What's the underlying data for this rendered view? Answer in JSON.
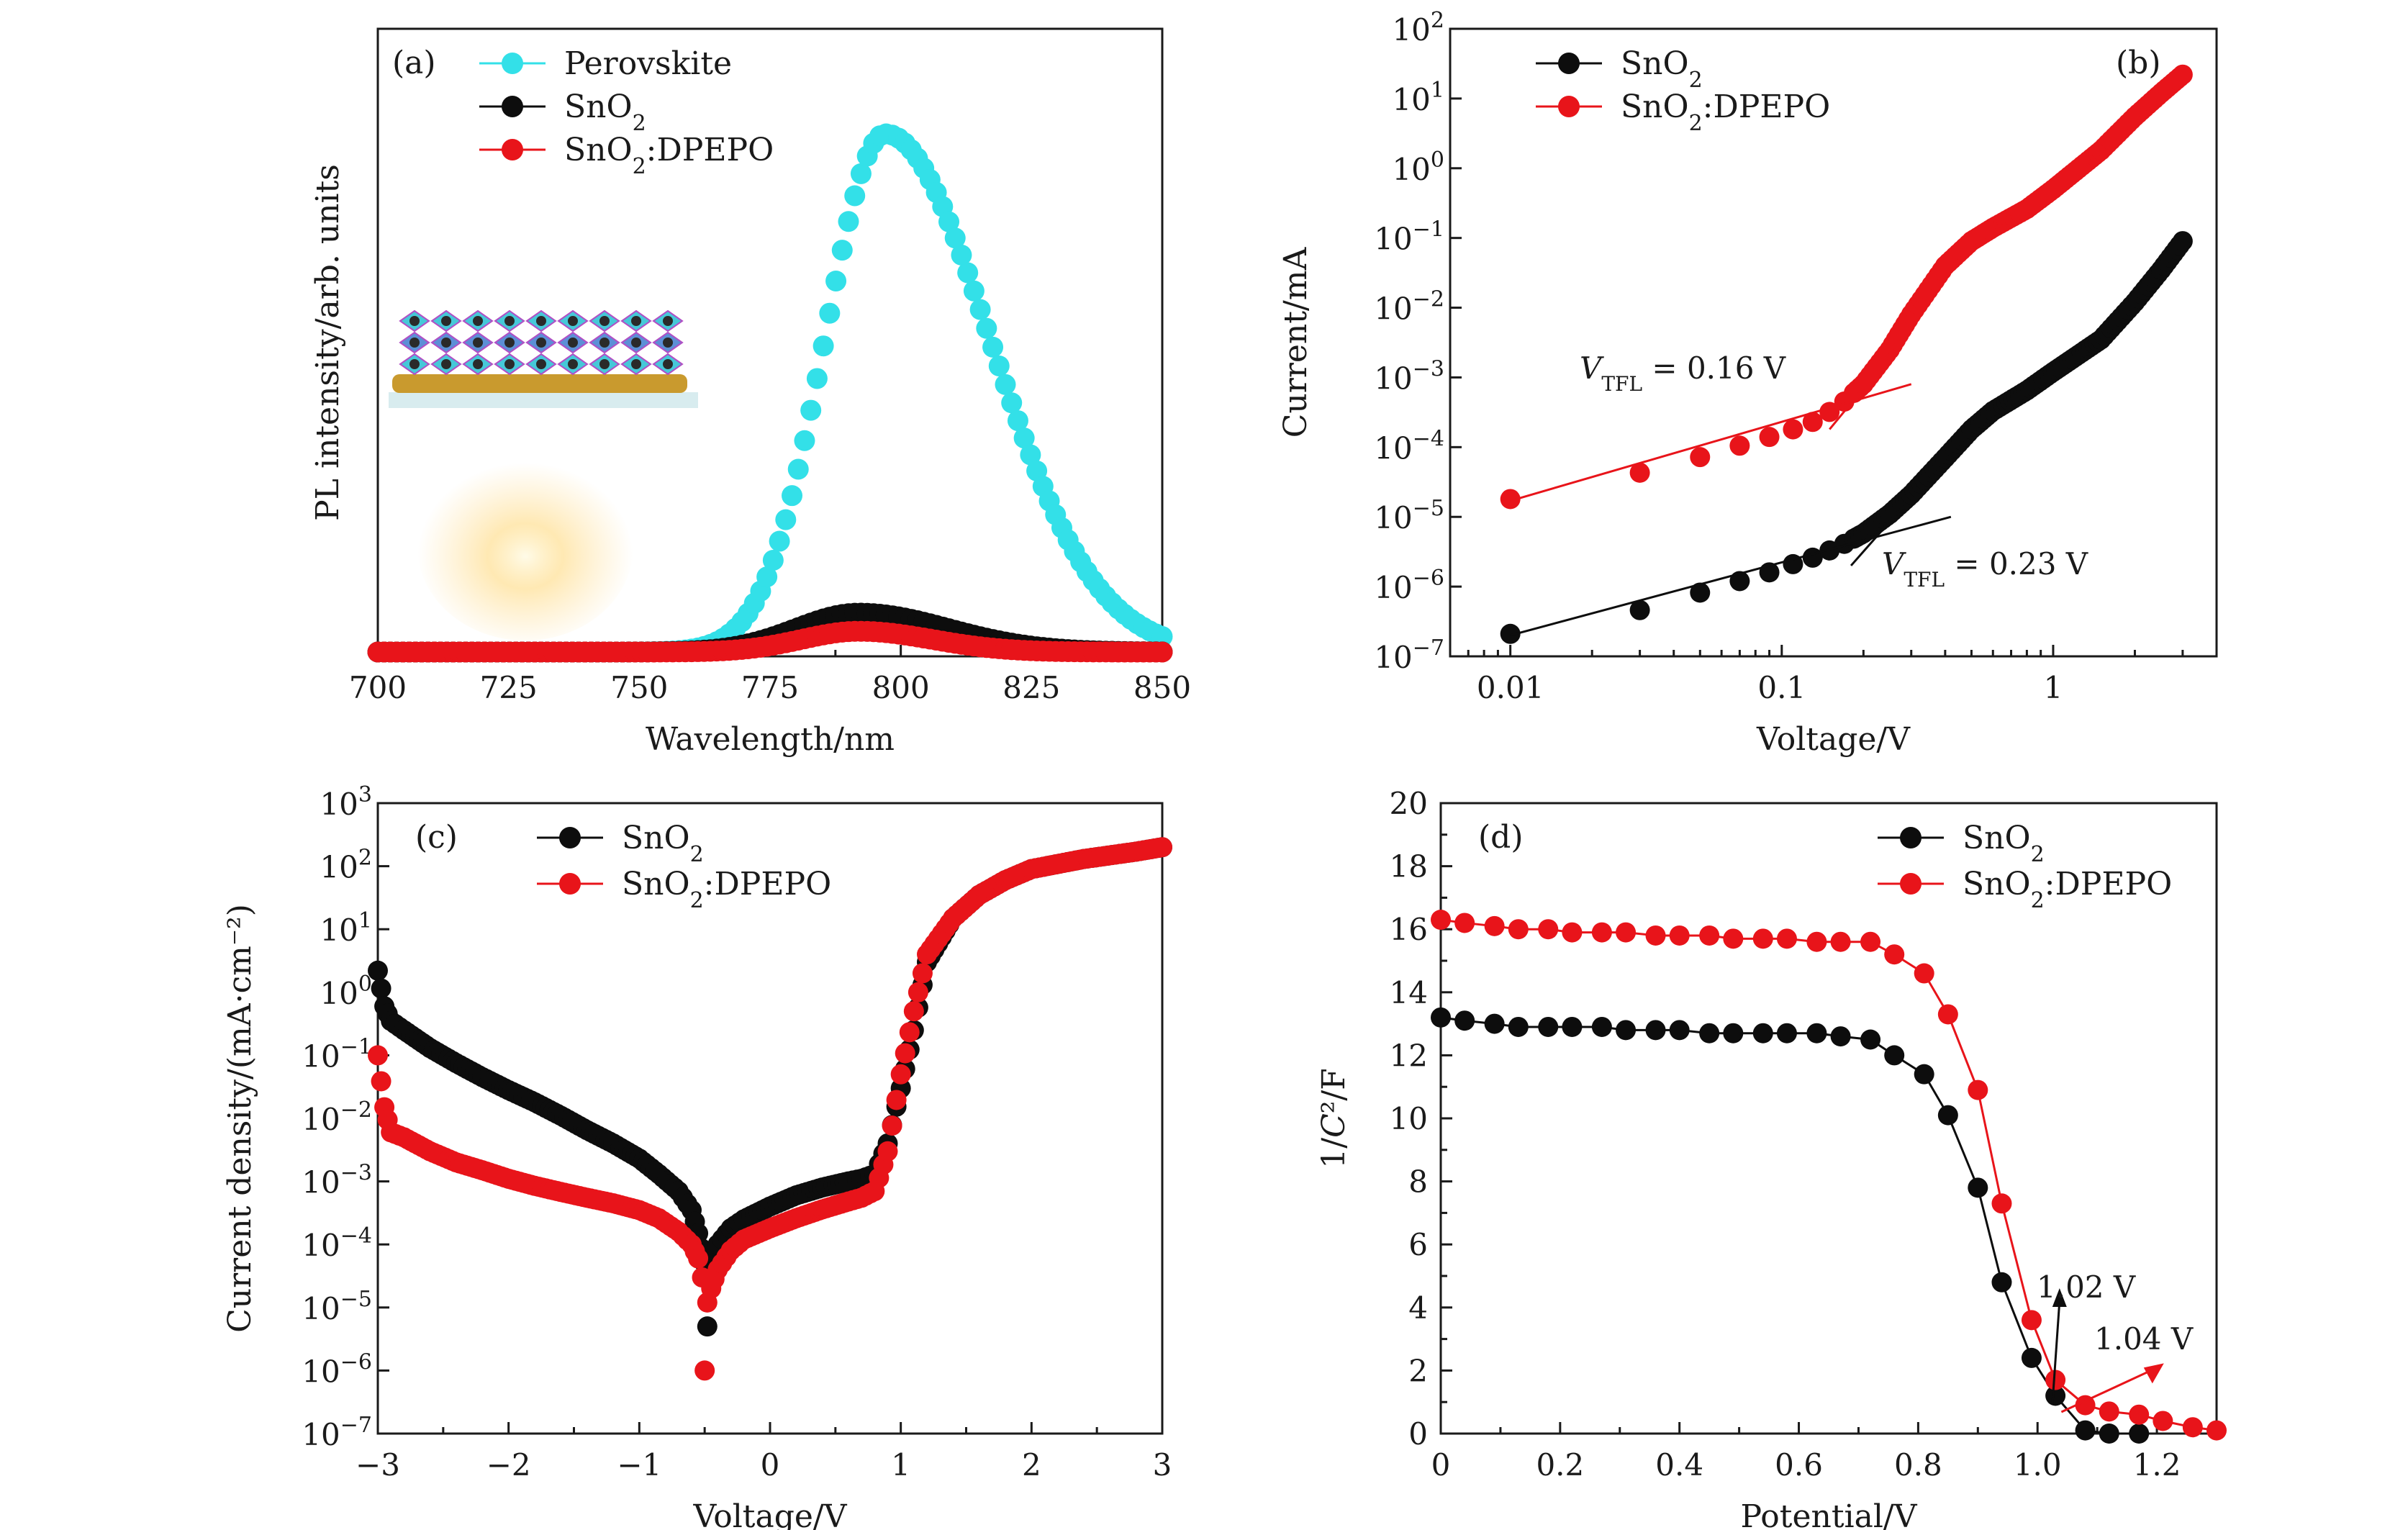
{
  "colors": {
    "perovskite": "#33e0e8",
    "sno2": "#0d0d0d",
    "dpepo": "#e8141a"
  },
  "chart_data": [
    {
      "id": "a",
      "type": "scatter",
      "panel_label": "(a)",
      "xlabel": "Wavelength/nm",
      "ylabel": "PL intensity/arb. units",
      "xlim": [
        700,
        850
      ],
      "ylim": [
        0,
        1
      ],
      "xticks": [
        "700",
        "725",
        "750",
        "775",
        "800",
        "825",
        "850"
      ],
      "yticks_shown": false,
      "legend": [
        "Perovskite",
        "SnO2",
        "SnO2:DPEPO"
      ],
      "series": [
        {
          "name": "Perovskite",
          "model": "gaussian",
          "peak_x": 797,
          "peak_y": 1.0,
          "sigma_left": 11.5,
          "sigma_right": 20.0,
          "x_range": [
            700,
            850
          ]
        },
        {
          "name": "SnO2",
          "model": "gaussian",
          "peak_x": 792,
          "peak_y": 0.075,
          "sigma_left": 12,
          "sigma_right": 17,
          "x_range": [
            700,
            850
          ]
        },
        {
          "name": "SnO2:DPEPO",
          "model": "gaussian",
          "peak_x": 792,
          "peak_y": 0.04,
          "sigma_left": 11,
          "sigma_right": 14,
          "x_range": [
            700,
            850
          ]
        }
      ],
      "inset": "perovskite film on SnO2 layer with emitted light"
    },
    {
      "id": "b",
      "type": "scatter",
      "panel_label": "(b)",
      "xlabel": "Voltage/V",
      "ylabel": "Current/mA",
      "xscale": "log",
      "yscale": "log",
      "xlim": [
        0.006,
        4
      ],
      "ylim": [
        1e-07,
        100
      ],
      "xticks": [
        {
          "v": 0.01,
          "label": "0.01"
        },
        {
          "v": 0.1,
          "label": "0.1"
        },
        {
          "v": 1,
          "label": "1"
        }
      ],
      "yticks_exp": [
        -7,
        -6,
        -5,
        -4,
        -3,
        -2,
        -1,
        0,
        1,
        2
      ],
      "legend": [
        "SnO2",
        "SnO2:DPEPO"
      ],
      "series": [
        {
          "name": "SnO2",
          "x": [
            0.01,
            0.03,
            0.05,
            0.07,
            0.09,
            0.11,
            0.13,
            0.15,
            0.17,
            0.2,
            0.25,
            0.3,
            0.4,
            0.5,
            0.6,
            0.8,
            1.0,
            1.5,
            2.0,
            2.5,
            3.0
          ],
          "y": [
            2.1e-07,
            4.6e-07,
            8.2e-07,
            1.2e-06,
            1.6e-06,
            2.1e-06,
            2.6e-06,
            3.3e-06,
            4.1e-06,
            5.8e-06,
            1.1e-05,
            2.1e-05,
            7e-05,
            0.00018,
            0.00033,
            0.00065,
            0.0012,
            0.0035,
            0.012,
            0.035,
            0.09
          ]
        },
        {
          "name": "SnO2:DPEPO",
          "x": [
            0.01,
            0.03,
            0.05,
            0.07,
            0.09,
            0.11,
            0.13,
            0.15,
            0.17,
            0.2,
            0.25,
            0.3,
            0.4,
            0.5,
            0.6,
            0.8,
            1.0,
            1.5,
            2.0,
            2.5,
            3.0
          ],
          "y": [
            1.8e-05,
            4.3e-05,
            7.2e-05,
            0.000105,
            0.00014,
            0.00018,
            0.00023,
            0.00032,
            0.00045,
            0.0008,
            0.0025,
            0.008,
            0.04,
            0.09,
            0.14,
            0.26,
            0.5,
            1.8,
            5.5,
            12,
            22
          ]
        }
      ],
      "fit_lines": [
        {
          "series": "SnO2",
          "from": [
            0.01,
            2e-07
          ],
          "to": [
            0.42,
            1e-05
          ]
        },
        {
          "series": "SnO2",
          "from": [
            0.18,
            2e-06
          ],
          "to": [
            0.27,
            1.2e-05
          ]
        },
        {
          "series": "SnO2:DPEPO",
          "from": [
            0.01,
            1.7e-05
          ],
          "to": [
            0.3,
            0.0008
          ]
        },
        {
          "series": "SnO2:DPEPO",
          "from": [
            0.15,
            0.00018
          ],
          "to": [
            0.22,
            0.0011
          ]
        }
      ],
      "annotations": [
        {
          "pre": "V",
          "sub": "TFL",
          "post": " = 0.16 V"
        },
        {
          "pre": "V",
          "sub": "TFL",
          "post": " = 0.23 V"
        }
      ]
    },
    {
      "id": "c",
      "type": "scatter",
      "panel_label": "(c)",
      "xlabel": "Voltage/V",
      "ylabel": "Current density/(mA·cm⁻²)",
      "yscale": "log",
      "xlim": [
        -3,
        3
      ],
      "ylim": [
        1e-07,
        1000
      ],
      "xticks": [
        {
          "v": -3,
          "label": "−3"
        },
        {
          "v": -2,
          "label": "−2"
        },
        {
          "v": -1,
          "label": "−1"
        },
        {
          "v": 0,
          "label": "0"
        },
        {
          "v": 1,
          "label": "1"
        },
        {
          "v": 2,
          "label": "2"
        },
        {
          "v": 3,
          "label": "3"
        }
      ],
      "yticks_exp": [
        -7,
        -6,
        -5,
        -4,
        -3,
        -2,
        -1,
        0,
        1,
        2,
        3
      ],
      "legend": [
        "SnO2",
        "SnO2:DPEPO"
      ],
      "series": [
        {
          "name": "SnO2",
          "x": [
            -3.0,
            -2.95,
            -2.9,
            -2.8,
            -2.6,
            -2.4,
            -2.2,
            -2.0,
            -1.8,
            -1.6,
            -1.4,
            -1.2,
            -1.0,
            -0.85,
            -0.7,
            -0.6,
            -0.55,
            -0.5,
            -0.48,
            -0.45,
            -0.4,
            -0.3,
            -0.2,
            0.0,
            0.2,
            0.4,
            0.6,
            0.7,
            0.8,
            0.9,
            1.0,
            1.1,
            1.2,
            1.4,
            1.6,
            1.8,
            2.0,
            2.4,
            2.8,
            3.0
          ],
          "y": [
            2.2,
            0.6,
            0.35,
            0.25,
            0.13,
            0.075,
            0.045,
            0.028,
            0.018,
            0.011,
            0.0065,
            0.004,
            0.0023,
            0.0013,
            0.0007,
            0.00035,
            0.00015,
            5e-05,
            5e-06,
            4e-05,
            0.0001,
            0.00018,
            0.00025,
            0.0004,
            0.0006,
            0.0008,
            0.001,
            0.0011,
            0.0013,
            0.004,
            0.03,
            0.25,
            3.0,
            15,
            35,
            60,
            90,
            130,
            170,
            200
          ]
        },
        {
          "name": "SnO2:DPEPO",
          "x": [
            -3.0,
            -2.95,
            -2.9,
            -2.8,
            -2.6,
            -2.4,
            -2.2,
            -2.0,
            -1.8,
            -1.6,
            -1.4,
            -1.2,
            -1.0,
            -0.85,
            -0.7,
            -0.6,
            -0.55,
            -0.52,
            -0.5,
            -0.48,
            -0.45,
            -0.4,
            -0.3,
            -0.2,
            0.0,
            0.2,
            0.4,
            0.6,
            0.7,
            0.8,
            0.9,
            1.0,
            1.1,
            1.2,
            1.4,
            1.6,
            1.8,
            2.0,
            2.4,
            2.8,
            3.0
          ],
          "y": [
            0.1,
            0.015,
            0.006,
            0.005,
            0.003,
            0.002,
            0.0015,
            0.0011,
            0.00085,
            0.00068,
            0.00055,
            0.00045,
            0.00035,
            0.00026,
            0.00016,
            0.0001,
            6e-05,
            3e-05,
            1e-06,
            1.2e-05,
            2e-05,
            4e-05,
            8e-05,
            0.00012,
            0.00018,
            0.00026,
            0.00036,
            0.00048,
            0.00055,
            0.0007,
            0.003,
            0.05,
            0.5,
            4.0,
            15,
            35,
            60,
            90,
            130,
            170,
            200
          ]
        }
      ]
    },
    {
      "id": "d",
      "type": "line",
      "panel_label": "(d)",
      "xlabel": "Potential/V",
      "ylabel": "1/C²/F",
      "xlim": [
        0,
        1.3
      ],
      "ylim": [
        0,
        20
      ],
      "xticks": [
        "0",
        "0.2",
        "0.4",
        "0.6",
        "0.8",
        "1.0",
        "1.2"
      ],
      "yticks": [
        "0",
        "2",
        "4",
        "6",
        "8",
        "10",
        "12",
        "14",
        "16",
        "18",
        "20"
      ],
      "legend": [
        "SnO2",
        "SnO2:DPEPO"
      ],
      "series": [
        {
          "name": "SnO2",
          "x": [
            0.0,
            0.04,
            0.09,
            0.13,
            0.18,
            0.22,
            0.27,
            0.31,
            0.36,
            0.4,
            0.45,
            0.49,
            0.54,
            0.58,
            0.63,
            0.67,
            0.72,
            0.76,
            0.81,
            0.85,
            0.9,
            0.94,
            0.99,
            1.03,
            1.08,
            1.12,
            1.17
          ],
          "y": [
            13.2,
            13.1,
            13.0,
            12.9,
            12.9,
            12.9,
            12.9,
            12.8,
            12.8,
            12.8,
            12.7,
            12.7,
            12.7,
            12.7,
            12.7,
            12.6,
            12.5,
            12.0,
            11.4,
            10.1,
            7.8,
            4.8,
            2.4,
            1.2,
            0.1,
            0.0,
            0.0
          ]
        },
        {
          "name": "SnO2:DPEPO",
          "x": [
            0.0,
            0.04,
            0.09,
            0.13,
            0.18,
            0.22,
            0.27,
            0.31,
            0.36,
            0.4,
            0.45,
            0.49,
            0.54,
            0.58,
            0.63,
            0.67,
            0.72,
            0.76,
            0.81,
            0.85,
            0.9,
            0.94,
            0.99,
            1.03,
            1.08,
            1.12,
            1.17,
            1.21,
            1.26,
            1.3
          ],
          "y": [
            16.3,
            16.2,
            16.1,
            16.0,
            16.0,
            15.9,
            15.9,
            15.9,
            15.8,
            15.8,
            15.8,
            15.7,
            15.7,
            15.7,
            15.6,
            15.6,
            15.6,
            15.2,
            14.6,
            13.3,
            10.9,
            7.3,
            3.6,
            1.7,
            0.9,
            0.7,
            0.6,
            0.4,
            0.2,
            0.1
          ]
        }
      ],
      "annotations": [
        {
          "text": "1.02 V",
          "series": "SnO2",
          "x": 1.02
        },
        {
          "text": "1.04 V",
          "series": "SnO2:DPEPO",
          "x": 1.04
        }
      ]
    }
  ]
}
